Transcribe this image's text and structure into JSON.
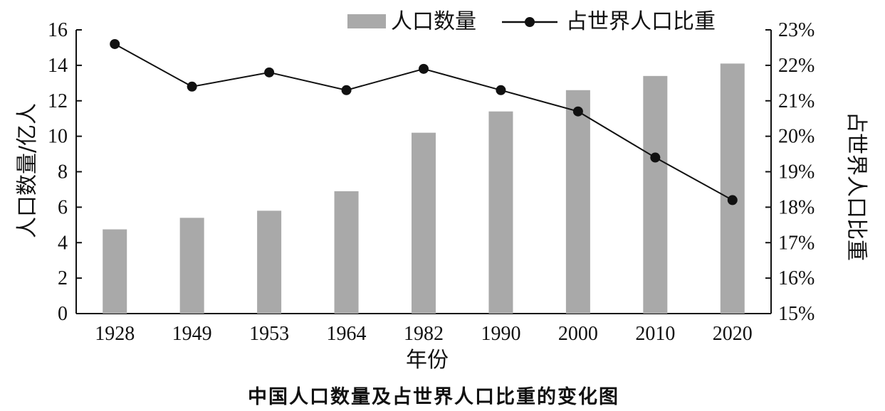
{
  "chart_data": {
    "type": "bar",
    "title": "中国人口数量及占世界人口比重的变化图",
    "xlabel": "年份",
    "ylabel": "人口数量/亿人",
    "ylabel_right": "占世界人口比重",
    "categories": [
      "1928",
      "1949",
      "1953",
      "1964",
      "1982",
      "1990",
      "2000",
      "2010",
      "2020"
    ],
    "ylim": [
      0,
      16
    ],
    "yticks": [
      "0",
      "2",
      "4",
      "6",
      "8",
      "10",
      "12",
      "14",
      "16"
    ],
    "ylim_right": [
      15,
      23
    ],
    "yticks_right": [
      "15%",
      "16%",
      "17%",
      "18%",
      "19%",
      "20%",
      "21%",
      "22%",
      "23%"
    ],
    "series": [
      {
        "name": "人口数量",
        "type": "bar",
        "axis": "left",
        "color": "#a9a9a9",
        "values": [
          4.75,
          5.4,
          5.8,
          6.9,
          10.2,
          11.4,
          12.6,
          13.4,
          14.1
        ]
      },
      {
        "name": "占世界人口比重",
        "type": "line",
        "axis": "right",
        "color": "#111111",
        "values": [
          22.6,
          21.4,
          21.8,
          21.3,
          21.9,
          21.3,
          20.7,
          19.4,
          18.2
        ]
      }
    ],
    "legend": {
      "placement": "top-right"
    },
    "grid": false
  }
}
